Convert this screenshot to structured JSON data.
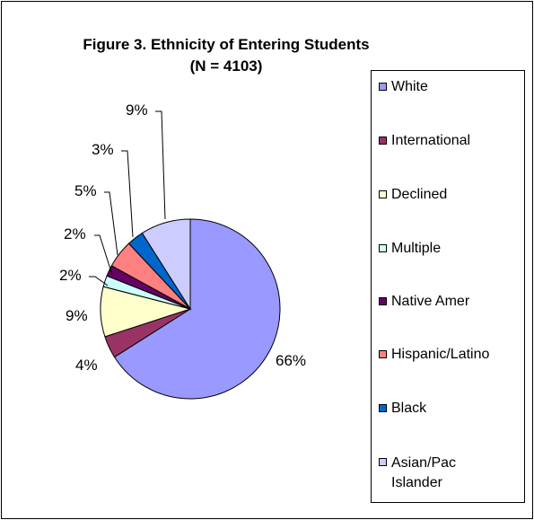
{
  "chart_data": {
    "type": "pie",
    "title": "Figure 3.  Ethnicity of Entering Students",
    "subtitle": "(N = 4103)",
    "legend_position": "right",
    "slices": [
      {
        "label": "White",
        "value": 66,
        "display": "66%",
        "color": "#9999FF"
      },
      {
        "label": "International",
        "value": 4,
        "display": "4%",
        "color": "#993366"
      },
      {
        "label": "Declined",
        "value": 9,
        "display": "9%",
        "color": "#FFFFCC"
      },
      {
        "label": "Multiple",
        "value": 2,
        "display": "2%",
        "color": "#CCFFFF"
      },
      {
        "label": "Native Amer",
        "value": 2,
        "display": "2%",
        "color": "#660066"
      },
      {
        "label": "Hispanic/Latino",
        "value": 5,
        "display": "5%",
        "color": "#FF8080"
      },
      {
        "label": "Black",
        "value": 3,
        "display": "3%",
        "color": "#0066CC"
      },
      {
        "label": "Asian/Pac Islander",
        "value": 9,
        "display": "9%",
        "color": "#CCCCFF"
      }
    ]
  }
}
